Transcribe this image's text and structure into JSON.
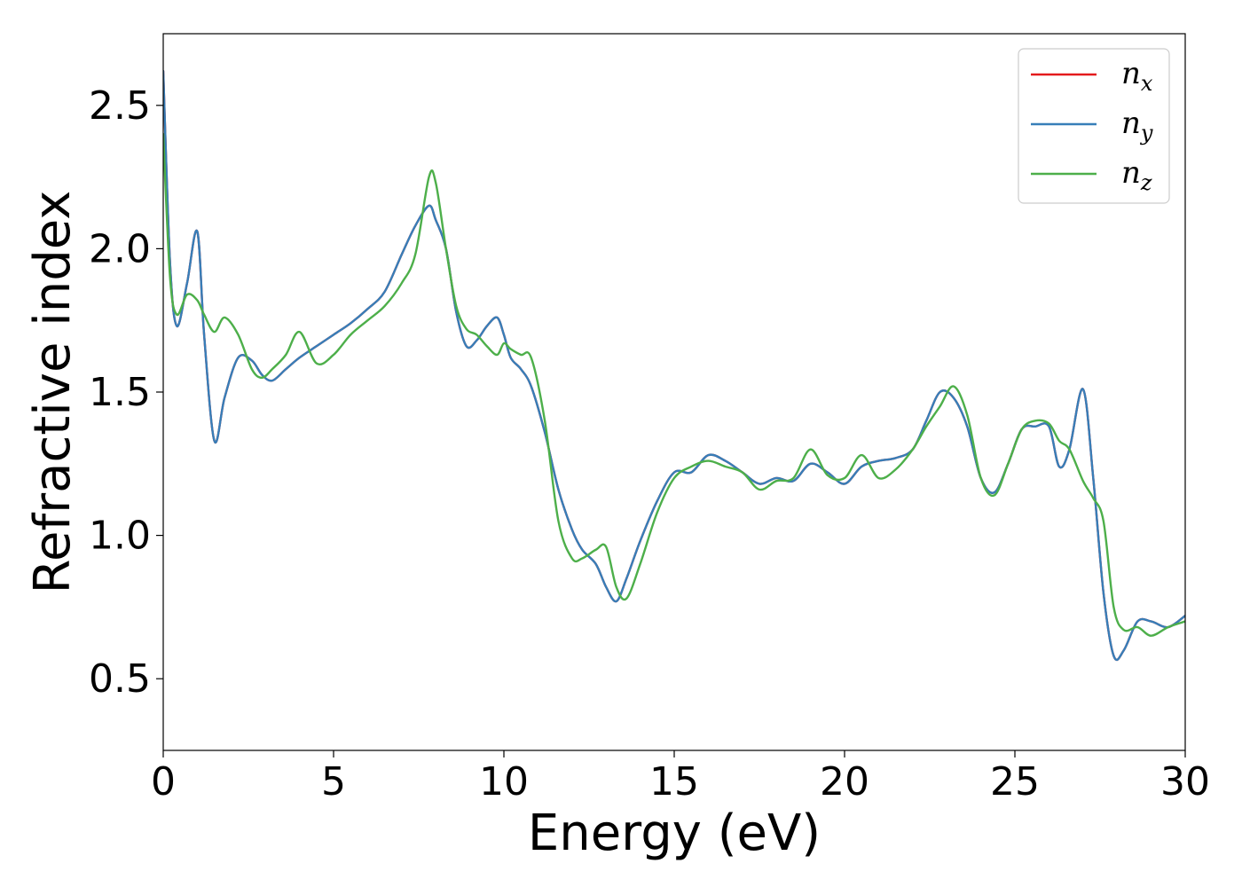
{
  "chart_data": {
    "type": "line",
    "xlabel": "Energy (eV)",
    "ylabel": "Refractive index",
    "xlim": [
      0,
      30
    ],
    "ylim": [
      0.25,
      2.75
    ],
    "xticks": [
      0,
      5,
      10,
      15,
      20,
      25,
      30
    ],
    "xtick_labels": [
      "0",
      "5",
      "10",
      "15",
      "20",
      "25",
      "30"
    ],
    "yticks": [
      0.5,
      1.0,
      1.5,
      2.0,
      2.5
    ],
    "ytick_labels": [
      "0.5",
      "1.0",
      "1.5",
      "2.0",
      "2.5"
    ],
    "grid": false,
    "legend_position": "top-right",
    "series": [
      {
        "name": "n",
        "sub": "x",
        "color": "#e41a1c",
        "x": [
          0,
          0.2,
          0.4,
          0.7,
          1.0,
          1.2,
          1.5,
          1.8,
          2.2,
          2.6,
          2.9,
          3.2,
          3.6,
          4.0,
          4.5,
          5.0,
          5.5,
          6.0,
          6.5,
          7.0,
          7.4,
          7.8,
          8.0,
          8.3,
          8.6,
          8.9,
          9.2,
          9.5,
          9.8,
          10.0,
          10.2,
          10.5,
          10.8,
          11.2,
          11.6,
          12.0,
          12.3,
          12.7,
          13.0,
          13.3,
          13.6,
          14.0,
          14.5,
          15.0,
          15.5,
          16.0,
          16.5,
          17.0,
          17.5,
          18.0,
          18.5,
          19.0,
          19.5,
          20.0,
          20.5,
          21.0,
          21.5,
          22.0,
          22.4,
          22.8,
          23.2,
          23.6,
          24.0,
          24.4,
          24.8,
          25.2,
          25.6,
          26.0,
          26.3,
          26.6,
          27.0,
          27.3,
          27.6,
          27.9,
          28.2,
          28.6,
          29.0,
          29.5,
          30.0
        ],
        "y": [
          2.62,
          1.95,
          1.73,
          1.88,
          2.06,
          1.7,
          1.33,
          1.48,
          1.62,
          1.61,
          1.56,
          1.54,
          1.58,
          1.62,
          1.66,
          1.7,
          1.74,
          1.79,
          1.85,
          1.98,
          2.08,
          2.15,
          2.1,
          2.0,
          1.78,
          1.66,
          1.68,
          1.73,
          1.76,
          1.7,
          1.62,
          1.58,
          1.52,
          1.36,
          1.16,
          1.02,
          0.95,
          0.9,
          0.82,
          0.77,
          0.85,
          0.98,
          1.12,
          1.22,
          1.22,
          1.28,
          1.26,
          1.22,
          1.18,
          1.2,
          1.19,
          1.25,
          1.22,
          1.18,
          1.24,
          1.26,
          1.27,
          1.3,
          1.4,
          1.5,
          1.48,
          1.38,
          1.2,
          1.15,
          1.25,
          1.37,
          1.38,
          1.38,
          1.24,
          1.3,
          1.51,
          1.2,
          0.8,
          0.58,
          0.6,
          0.7,
          0.7,
          0.68,
          0.72
        ]
      },
      {
        "name": "n",
        "sub": "y",
        "color": "#377eb8",
        "x": [
          0,
          0.2,
          0.4,
          0.7,
          1.0,
          1.2,
          1.5,
          1.8,
          2.2,
          2.6,
          2.9,
          3.2,
          3.6,
          4.0,
          4.5,
          5.0,
          5.5,
          6.0,
          6.5,
          7.0,
          7.4,
          7.8,
          8.0,
          8.3,
          8.6,
          8.9,
          9.2,
          9.5,
          9.8,
          10.0,
          10.2,
          10.5,
          10.8,
          11.2,
          11.6,
          12.0,
          12.3,
          12.7,
          13.0,
          13.3,
          13.6,
          14.0,
          14.5,
          15.0,
          15.5,
          16.0,
          16.5,
          17.0,
          17.5,
          18.0,
          18.5,
          19.0,
          19.5,
          20.0,
          20.5,
          21.0,
          21.5,
          22.0,
          22.4,
          22.8,
          23.2,
          23.6,
          24.0,
          24.4,
          24.8,
          25.2,
          25.6,
          26.0,
          26.3,
          26.6,
          27.0,
          27.3,
          27.6,
          27.9,
          28.2,
          28.6,
          29.0,
          29.5,
          30.0
        ],
        "y": [
          2.62,
          1.95,
          1.73,
          1.88,
          2.06,
          1.7,
          1.33,
          1.48,
          1.62,
          1.61,
          1.56,
          1.54,
          1.58,
          1.62,
          1.66,
          1.7,
          1.74,
          1.79,
          1.85,
          1.98,
          2.08,
          2.15,
          2.1,
          2.0,
          1.78,
          1.66,
          1.68,
          1.73,
          1.76,
          1.7,
          1.62,
          1.58,
          1.52,
          1.36,
          1.16,
          1.02,
          0.95,
          0.9,
          0.82,
          0.77,
          0.85,
          0.98,
          1.12,
          1.22,
          1.22,
          1.28,
          1.26,
          1.22,
          1.18,
          1.2,
          1.19,
          1.25,
          1.22,
          1.18,
          1.24,
          1.26,
          1.27,
          1.3,
          1.4,
          1.5,
          1.48,
          1.38,
          1.2,
          1.15,
          1.25,
          1.37,
          1.38,
          1.38,
          1.24,
          1.3,
          1.51,
          1.2,
          0.8,
          0.58,
          0.6,
          0.7,
          0.7,
          0.68,
          0.72
        ]
      },
      {
        "name": "n",
        "sub": "z",
        "color": "#4daf4a",
        "x": [
          0,
          0.2,
          0.4,
          0.7,
          1.0,
          1.2,
          1.5,
          1.8,
          2.2,
          2.6,
          2.9,
          3.2,
          3.6,
          4.0,
          4.5,
          5.0,
          5.5,
          6.0,
          6.5,
          7.0,
          7.4,
          7.8,
          8.0,
          8.3,
          8.6,
          8.9,
          9.2,
          9.5,
          9.8,
          10.0,
          10.2,
          10.5,
          10.8,
          11.2,
          11.6,
          12.0,
          12.3,
          12.7,
          13.0,
          13.3,
          13.6,
          14.0,
          14.5,
          15.0,
          15.5,
          16.0,
          16.5,
          17.0,
          17.5,
          18.0,
          18.5,
          19.0,
          19.5,
          20.0,
          20.5,
          21.0,
          21.5,
          22.0,
          22.4,
          22.8,
          23.2,
          23.6,
          24.0,
          24.4,
          24.8,
          25.2,
          25.6,
          26.0,
          26.3,
          26.6,
          27.0,
          27.3,
          27.6,
          27.9,
          28.2,
          28.6,
          29.0,
          29.5,
          30.0
        ],
        "y": [
          2.4,
          1.9,
          1.77,
          1.84,
          1.82,
          1.77,
          1.71,
          1.76,
          1.7,
          1.58,
          1.55,
          1.58,
          1.63,
          1.71,
          1.6,
          1.63,
          1.7,
          1.75,
          1.8,
          1.88,
          1.98,
          2.25,
          2.23,
          2.0,
          1.8,
          1.72,
          1.7,
          1.66,
          1.63,
          1.67,
          1.65,
          1.63,
          1.62,
          1.4,
          1.05,
          0.92,
          0.92,
          0.95,
          0.96,
          0.82,
          0.78,
          0.9,
          1.08,
          1.2,
          1.24,
          1.26,
          1.24,
          1.22,
          1.16,
          1.19,
          1.2,
          1.3,
          1.21,
          1.2,
          1.28,
          1.2,
          1.23,
          1.3,
          1.38,
          1.45,
          1.52,
          1.42,
          1.2,
          1.14,
          1.25,
          1.37,
          1.4,
          1.39,
          1.33,
          1.3,
          1.19,
          1.13,
          1.05,
          0.75,
          0.67,
          0.68,
          0.65,
          0.68,
          0.7
        ]
      }
    ]
  }
}
